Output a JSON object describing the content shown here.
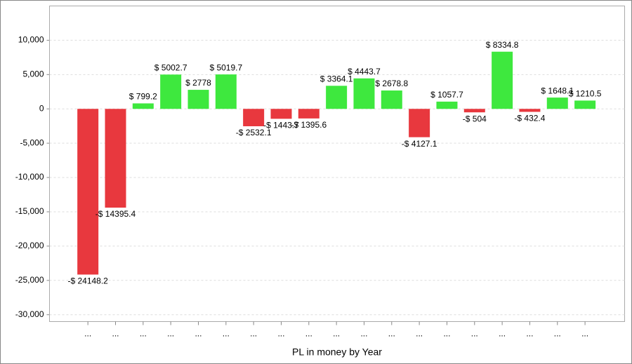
{
  "chart_data": {
    "type": "bar",
    "x_label": "PL in money by Year",
    "categories": [
      "...",
      "...",
      "...",
      "...",
      "...",
      "...",
      "...",
      "...",
      "...",
      "...",
      "...",
      "...",
      "...",
      "...",
      "...",
      "...",
      "...",
      "...",
      "..."
    ],
    "values": [
      -24148.2,
      -14395.4,
      799.2,
      5002.7,
      2778,
      5019.7,
      -2532.1,
      -1443.7,
      -1395.6,
      3364.1,
      4443.7,
      2678.8,
      -4127.1,
      1057.7,
      -504,
      8334.8,
      -432.4,
      1648.1,
      1210.5
    ],
    "value_labels": [
      "-$ 24148.2",
      "-$ 14395.4",
      "$ 799.2",
      "$ 5002.7",
      "$ 2778",
      "$ 5019.7",
      "-$ 2532.1",
      "-$ 1443.7",
      "-$ 1395.6",
      "$ 3364.1",
      "$ 4443.7",
      "$ 2678.8",
      "-$ 4127.1",
      "$ 1057.7",
      "-$ 504",
      "$ 8334.8",
      "-$ 432.4",
      "$ 1648.1",
      "$ 1210.5"
    ],
    "positive_color": "#3ee83e",
    "negative_color": "#e8383e",
    "ylim": [
      -31000,
      15000
    ],
    "yticks": [
      {
        "value": -30000,
        "label": "-30,000"
      },
      {
        "value": -25000,
        "label": "-25,000"
      },
      {
        "value": -20000,
        "label": "-20,000"
      },
      {
        "value": -15000,
        "label": "-15,000"
      },
      {
        "value": -10000,
        "label": "-10,000"
      },
      {
        "value": -5000,
        "label": "-5,000"
      },
      0,
      {
        "value": 5000,
        "label": "5,000"
      },
      {
        "value": 10000,
        "label": "10,000"
      }
    ],
    "grid": true
  }
}
